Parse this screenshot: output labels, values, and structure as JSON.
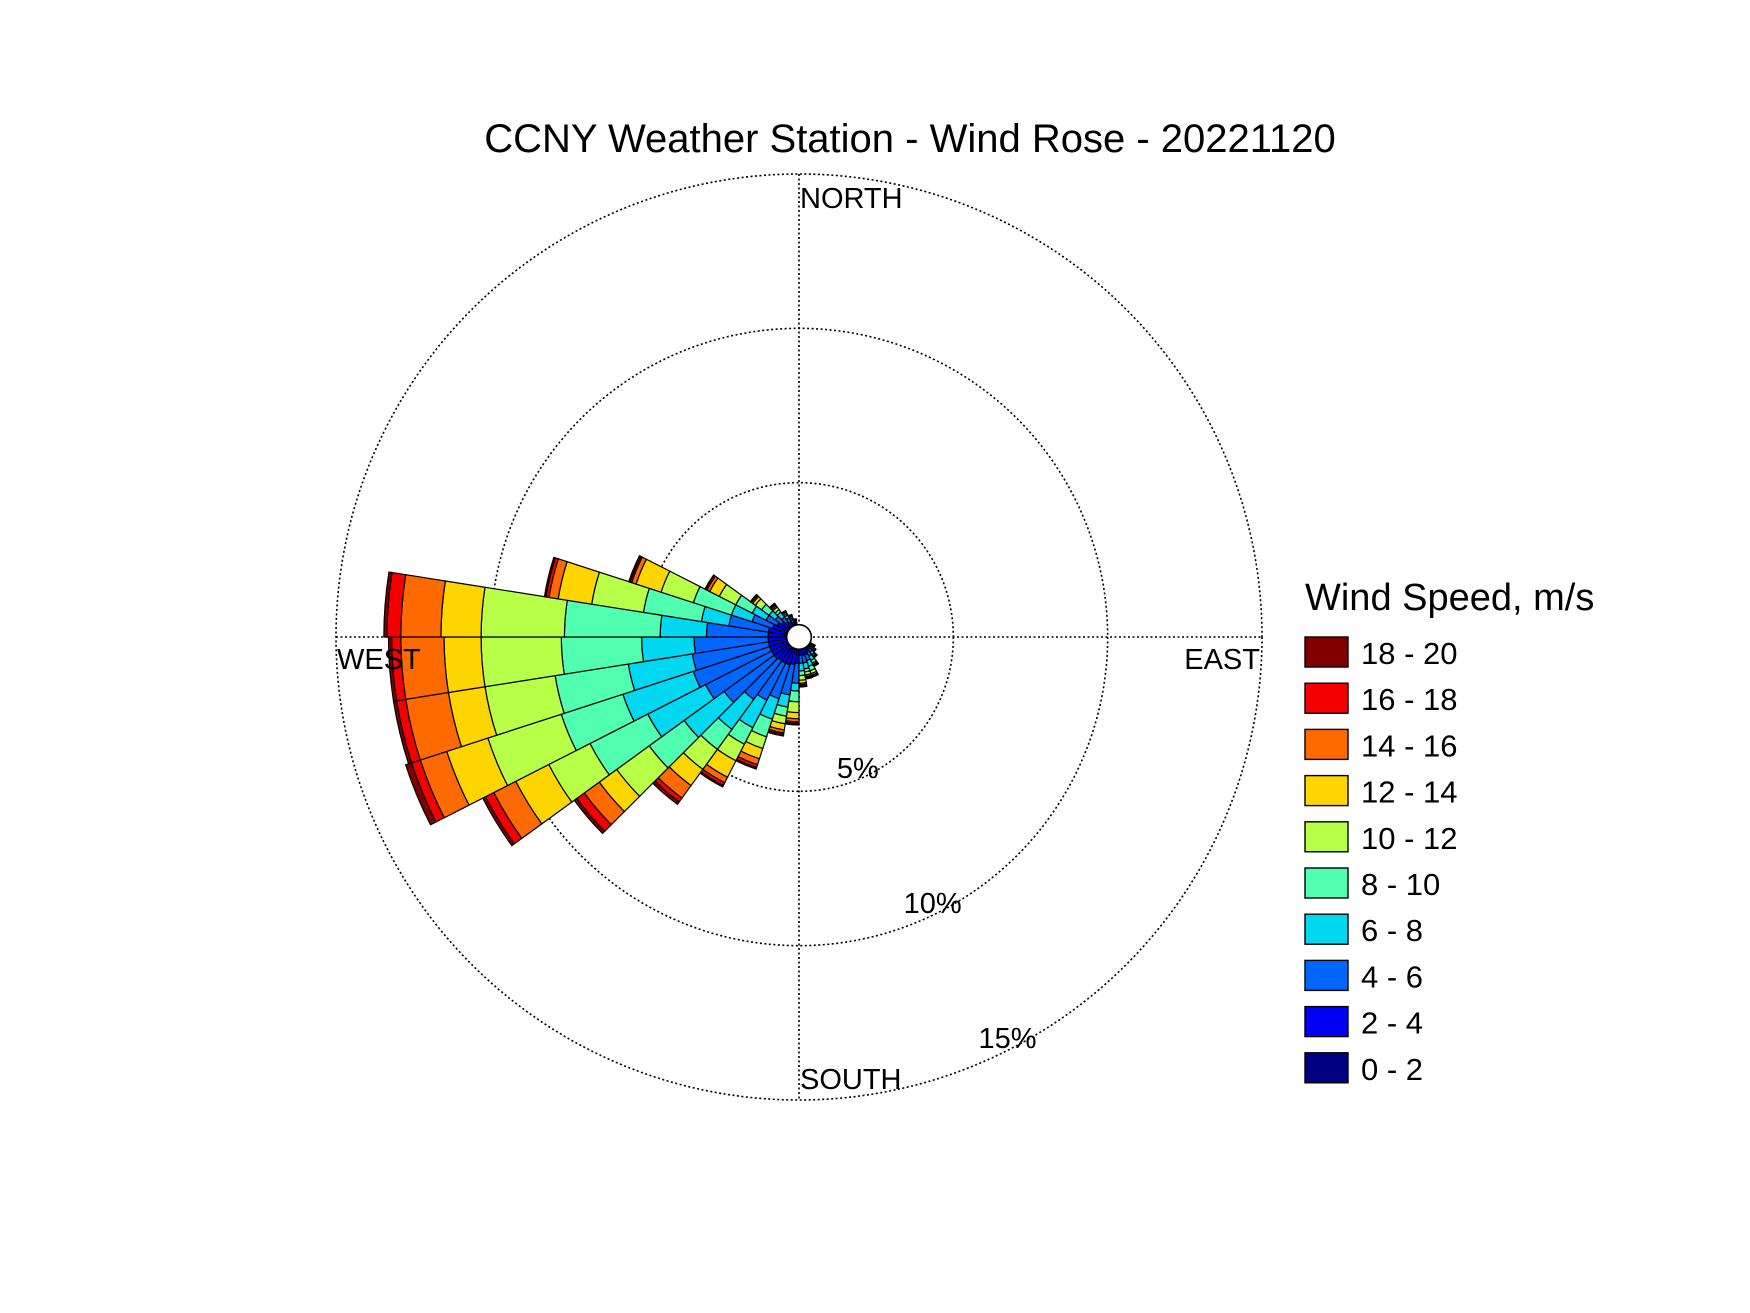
{
  "chart_data": {
    "type": "windrose",
    "title": "CCNY Weather Station - Wind Rose - 20221120",
    "directions": {
      "north": "NORTH",
      "east": "EAST",
      "south": "SOUTH",
      "west": "WEST"
    },
    "rings": [
      5,
      10,
      15
    ],
    "ring_labels": [
      "5%",
      "10%",
      "15%"
    ],
    "rmax": 15,
    "calm_radius_percent": 0.4,
    "legend_title": "Wind Speed, m/s",
    "bins": [
      {
        "label": "0 - 2",
        "color": "#000080"
      },
      {
        "label": "2 - 4",
        "color": "#0000f5"
      },
      {
        "label": "4 - 6",
        "color": "#0066ff"
      },
      {
        "label": "6 - 8",
        "color": "#00d8f2"
      },
      {
        "label": "8 - 10",
        "color": "#50ffb0"
      },
      {
        "label": "10 - 12",
        "color": "#b8ff48"
      },
      {
        "label": "12 - 14",
        "color": "#ffd500"
      },
      {
        "label": "14 - 16",
        "color": "#ff6a00"
      },
      {
        "label": "16 - 18",
        "color": "#f50000"
      },
      {
        "label": "18 - 20",
        "color": "#800000"
      }
    ],
    "sector_width_deg": 9,
    "sectors": [
      {
        "dir": 184.5,
        "cumulative": [
          0.4,
          0.85,
          1.5,
          1.75,
          2.1,
          2.45,
          2.65,
          2.75,
          2.8,
          2.85
        ]
      },
      {
        "dir": 193.5,
        "cumulative": [
          0.4,
          0.9,
          1.9,
          2.3,
          2.6,
          2.85,
          3.05,
          3.15,
          3.2,
          3.25
        ]
      },
      {
        "dir": 202.5,
        "cumulative": [
          0.4,
          0.95,
          2.1,
          2.8,
          3.4,
          3.8,
          4.15,
          4.35,
          4.45,
          4.5
        ]
      },
      {
        "dir": 211.5,
        "cumulative": [
          0.4,
          0.95,
          2.3,
          3.3,
          3.9,
          4.5,
          5.1,
          5.3,
          5.4,
          5.45
        ]
      },
      {
        "dir": 220.5,
        "cumulative": [
          0.4,
          0.95,
          2.5,
          3.7,
          4.5,
          5.3,
          5.95,
          6.45,
          6.6,
          6.7
        ]
      },
      {
        "dir": 229.5,
        "cumulative": [
          0.4,
          1.0,
          3.0,
          4.6,
          6.0,
          7.3,
          8.0,
          8.6,
          8.9,
          9.0
        ]
      },
      {
        "dir": 238.5,
        "cumulative": [
          0.4,
          1.0,
          3.4,
          5.5,
          7.6,
          9.1,
          10.3,
          11.1,
          11.4,
          11.5
        ]
      },
      {
        "dir": 247.5,
        "cumulative": [
          0.4,
          1.0,
          3.6,
          6.0,
          8.1,
          10.6,
          12.0,
          12.9,
          13.2,
          13.4
        ]
      },
      {
        "dir": 256.5,
        "cumulative": [
          0.4,
          1.0,
          3.5,
          5.6,
          8.0,
          10.3,
          11.5,
          12.9,
          13.2,
          13.3
        ]
      },
      {
        "dir": 265.5,
        "cumulative": [
          0.4,
          1.0,
          3.4,
          5.1,
          7.7,
          10.3,
          11.5,
          12.9,
          13.2,
          13.3
        ]
      },
      {
        "dir": 274.5,
        "cumulative": [
          0.4,
          1.0,
          3.0,
          4.5,
          7.6,
          10.3,
          11.6,
          12.9,
          13.35,
          13.45
        ]
      },
      {
        "dir": 283.5,
        "cumulative": [
          0.4,
          1.0,
          2.3,
          3.2,
          5.1,
          6.8,
          7.9,
          8.2,
          8.3,
          8.35
        ]
      },
      {
        "dir": 292.5,
        "cumulative": [
          0.4,
          0.9,
          1.6,
          2.3,
          3.6,
          4.7,
          5.55,
          5.7,
          5.75,
          5.8
        ]
      },
      {
        "dir": 301.5,
        "cumulative": [
          0.4,
          0.8,
          1.2,
          1.7,
          2.3,
          2.9,
          3.25,
          3.35,
          3.4,
          3.42
        ]
      },
      {
        "dir": 310.5,
        "cumulative": [
          0.4,
          0.7,
          0.95,
          1.2,
          1.5,
          1.75,
          1.85,
          1.9,
          1.92,
          1.95
        ]
      },
      {
        "dir": 319.5,
        "cumulative": [
          0.4,
          0.6,
          0.8,
          1.0,
          1.1,
          1.2,
          1.25,
          1.3,
          1.32,
          1.35
        ]
      },
      {
        "dir": 328.5,
        "cumulative": [
          0.4,
          0.55,
          0.7,
          0.8,
          0.85,
          0.9,
          0.92,
          0.94,
          0.95,
          0.96
        ]
      },
      {
        "dir": 337.5,
        "cumulative": [
          0.4,
          0.5,
          0.6,
          0.65,
          0.7,
          0.72,
          0.74,
          0.75,
          0.76,
          0.77
        ]
      },
      {
        "dir": 346.5,
        "cumulative": [
          0.4,
          0.45,
          0.5,
          0.53,
          0.55,
          0.57,
          0.58,
          0.59,
          0.6,
          0.6
        ]
      },
      {
        "dir": 175.5,
        "cumulative": [
          0.4,
          0.6,
          0.85,
          1.1,
          1.25,
          1.4,
          1.5,
          1.55,
          1.6,
          1.62
        ]
      },
      {
        "dir": 166.5,
        "cumulative": [
          0.4,
          0.6,
          0.85,
          1.05,
          1.15,
          1.25,
          1.3,
          1.34,
          1.36,
          1.38
        ]
      },
      {
        "dir": 157.5,
        "cumulative": [
          0.4,
          0.6,
          0.8,
          1.0,
          1.15,
          1.25,
          1.3,
          1.33,
          1.35,
          1.37
        ]
      },
      {
        "dir": 148.5,
        "cumulative": [
          0.4,
          0.55,
          0.7,
          0.85,
          0.95,
          1.0,
          1.03,
          1.05,
          1.06,
          1.07
        ]
      },
      {
        "dir": 139.5,
        "cumulative": [
          0.4,
          0.5,
          0.6,
          0.7,
          0.75,
          0.78,
          0.8,
          0.81,
          0.82,
          0.83
        ]
      },
      {
        "dir": 130.5,
        "cumulative": [
          0.4,
          0.48,
          0.55,
          0.6,
          0.63,
          0.65,
          0.66,
          0.67,
          0.68,
          0.68
        ]
      },
      {
        "dir": 121.5,
        "cumulative": [
          0.4,
          0.45,
          0.5,
          0.54,
          0.56,
          0.57,
          0.58,
          0.58,
          0.59,
          0.59
        ]
      }
    ]
  }
}
